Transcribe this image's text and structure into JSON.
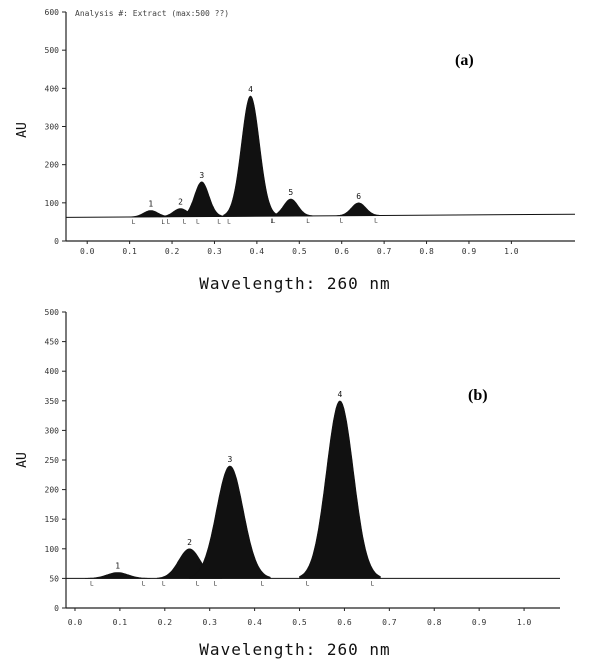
{
  "chart_data": [
    {
      "type": "area",
      "panel_label": "(a)",
      "header_text": "Analysis #: Extract (max:500 ??)",
      "xlabel": "Wavelength: 260 nm",
      "ylabel": "AU",
      "xlim": [
        -0.05,
        1.15
      ],
      "ylim": [
        0,
        600
      ],
      "x_ticks": [
        "0.0",
        "0.1",
        "0.2",
        "0.3",
        "0.4",
        "0.5",
        "0.6",
        "0.7",
        "0.8",
        "0.9",
        "1.0"
      ],
      "x_tick_values": [
        0.0,
        0.1,
        0.2,
        0.3,
        0.4,
        0.5,
        0.6,
        0.7,
        0.8,
        0.9,
        1.0
      ],
      "y_ticks": [
        "0",
        "100",
        "200",
        "300",
        "400",
        "500",
        "600"
      ],
      "y_tick_values": [
        0,
        100,
        200,
        300,
        400,
        500,
        600
      ],
      "baseline": [
        [
          -0.05,
          62
        ],
        [
          1.15,
          70
        ]
      ],
      "series": [
        {
          "peaks": [
            {
              "label": "1",
              "x": 0.15,
              "height": 80
            },
            {
              "label": "2",
              "x": 0.22,
              "height": 85
            },
            {
              "label": "3",
              "x": 0.27,
              "height": 155
            },
            {
              "label": "4",
              "x": 0.385,
              "height": 380
            },
            {
              "label": "5",
              "x": 0.48,
              "height": 110
            },
            {
              "label": "6",
              "x": 0.64,
              "height": 100
            }
          ]
        }
      ]
    },
    {
      "type": "area",
      "panel_label": "(b)",
      "xlabel": "Wavelength: 260 nm",
      "ylabel": "AU",
      "xlim": [
        -0.02,
        1.08
      ],
      "ylim": [
        0,
        500
      ],
      "x_ticks": [
        "0.0",
        "0.1",
        "0.2",
        "0.3",
        "0.4",
        "0.5",
        "0.6",
        "0.7",
        "0.8",
        "0.9",
        "1.0"
      ],
      "x_tick_values": [
        0.0,
        0.1,
        0.2,
        0.3,
        0.4,
        0.5,
        0.6,
        0.7,
        0.8,
        0.9,
        1.0
      ],
      "y_ticks": [
        "0",
        "50",
        "100",
        "150",
        "200",
        "250",
        "300",
        "350",
        "400",
        "450",
        "500"
      ],
      "y_tick_values": [
        0,
        50,
        100,
        150,
        200,
        250,
        300,
        350,
        400,
        450,
        500
      ],
      "baseline": [
        [
          -0.02,
          50
        ],
        [
          1.08,
          50
        ]
      ],
      "series": [
        {
          "peaks": [
            {
              "label": "1",
              "x": 0.095,
              "height": 60
            },
            {
              "label": "2",
              "x": 0.255,
              "height": 100
            },
            {
              "label": "3",
              "x": 0.345,
              "height": 240
            },
            {
              "label": "4",
              "x": 0.59,
              "height": 350
            }
          ]
        }
      ]
    }
  ]
}
